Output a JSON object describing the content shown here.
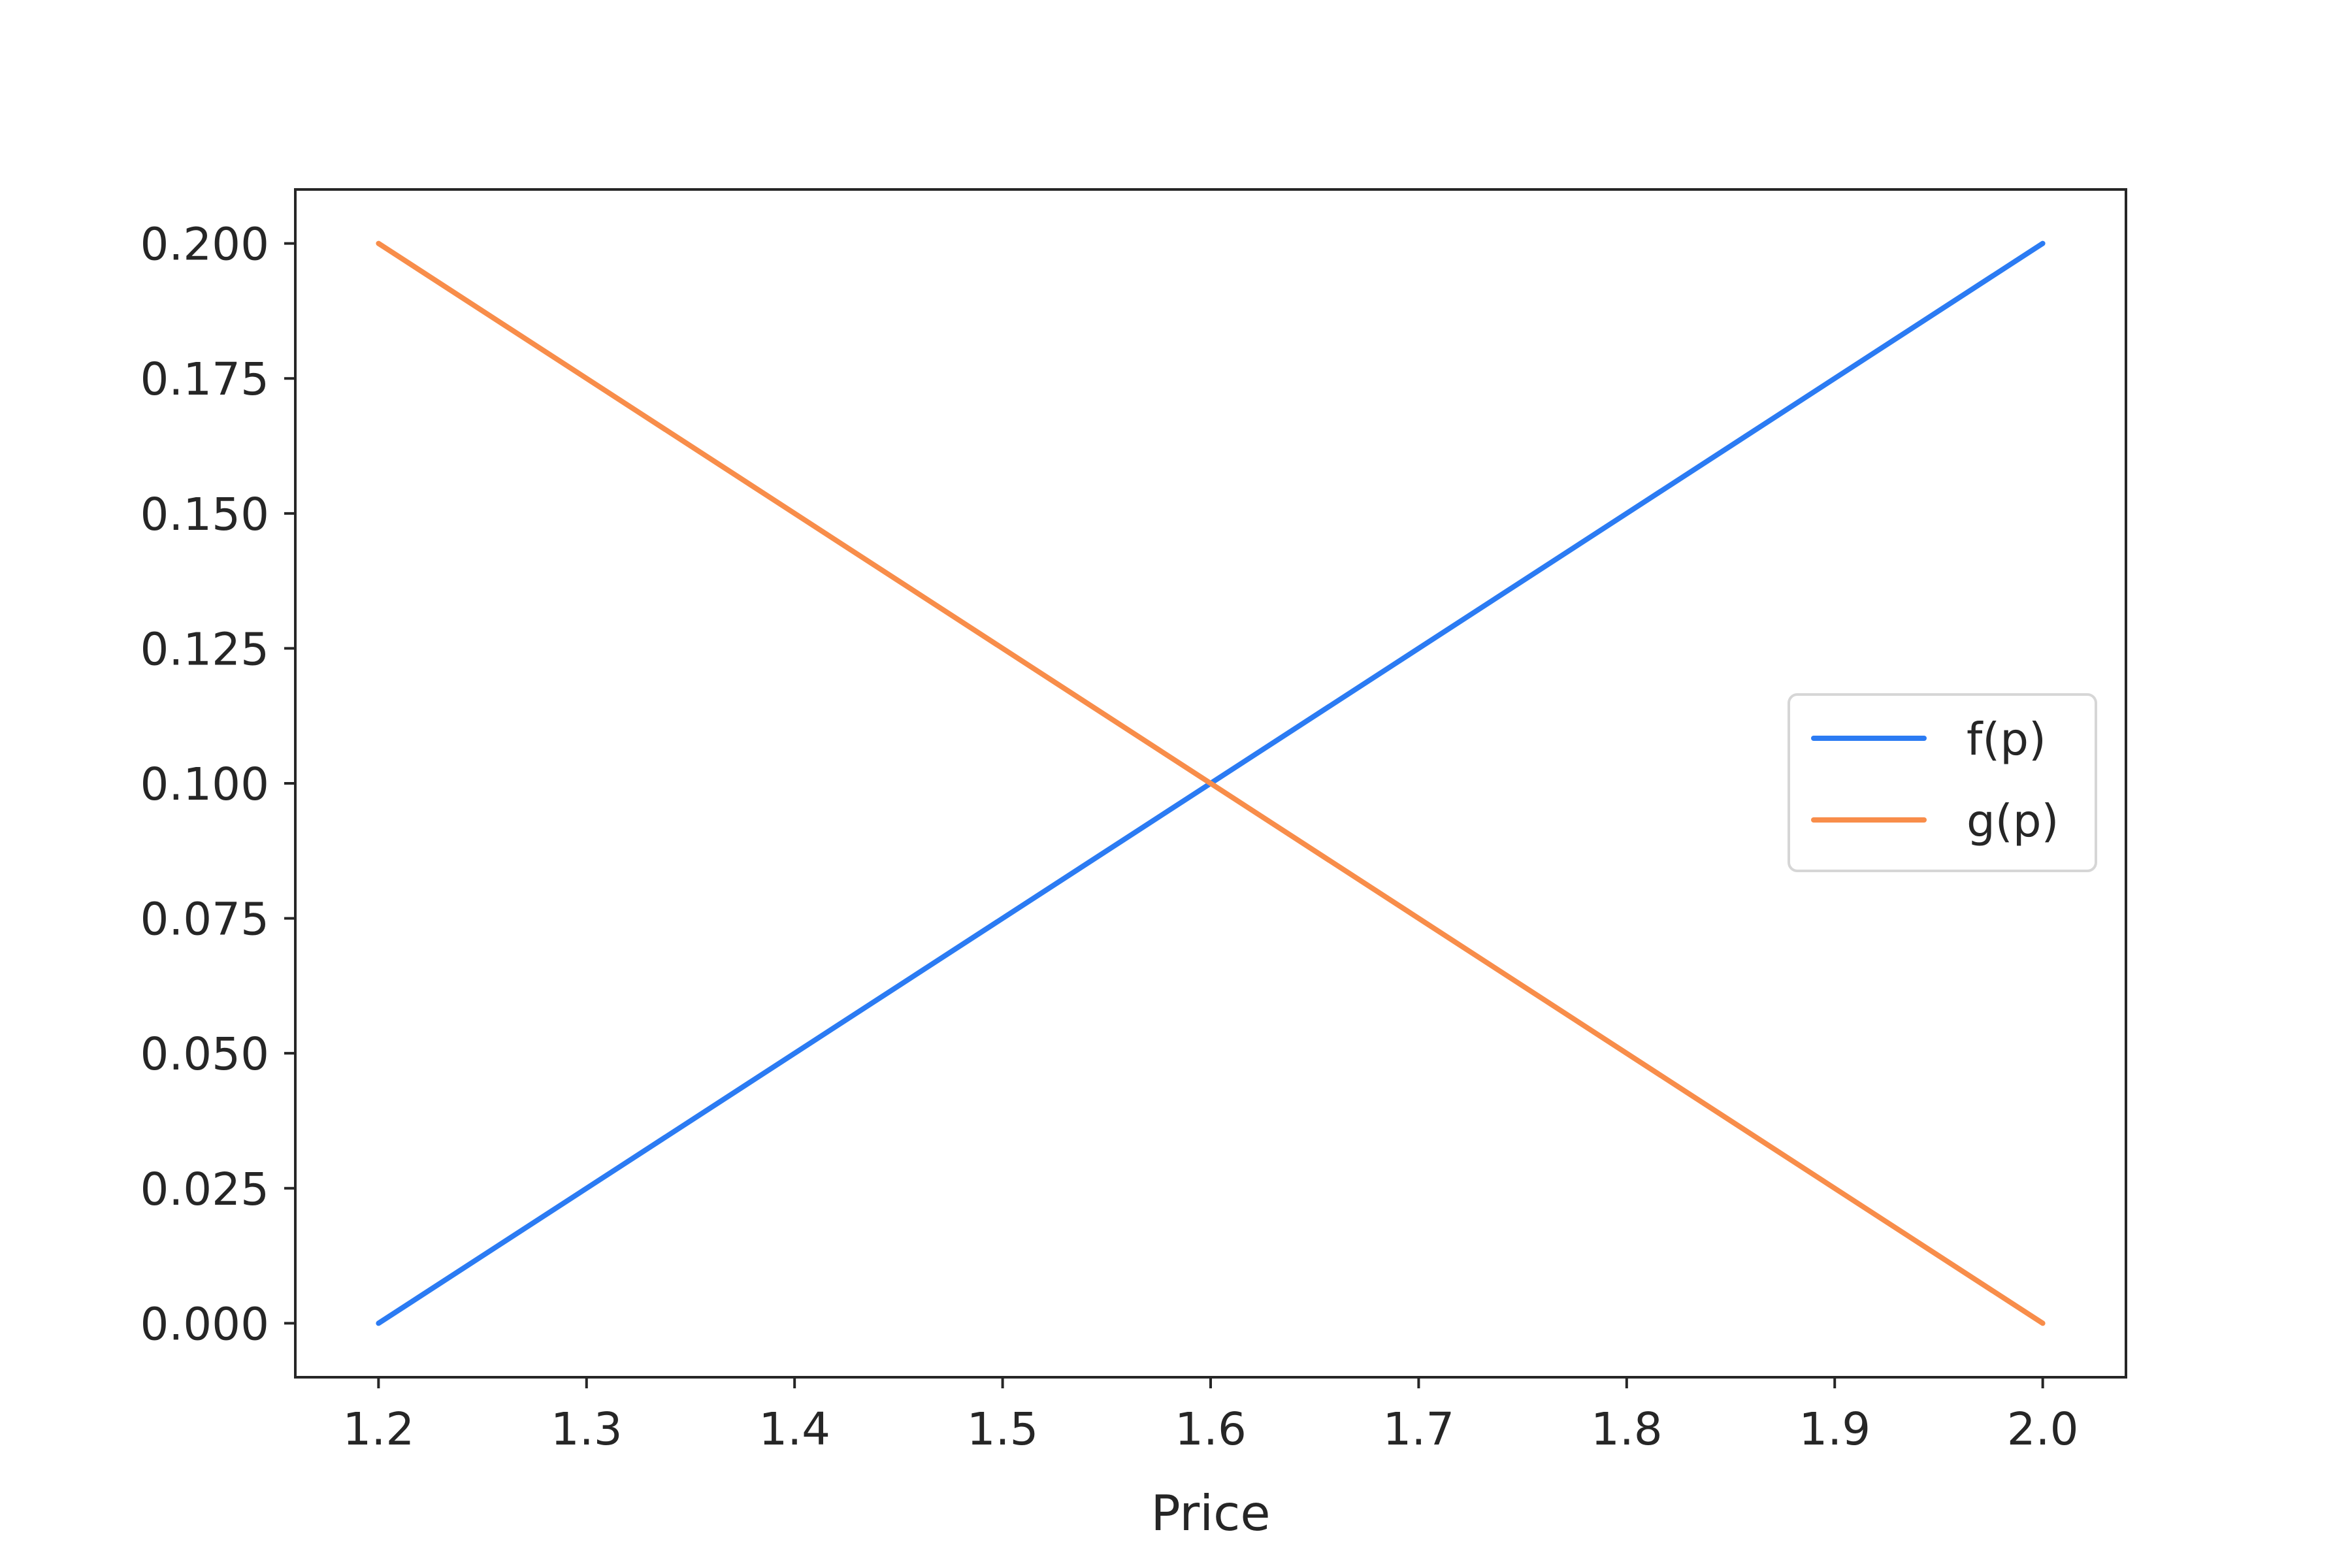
{
  "chart_data": {
    "type": "line",
    "title": "",
    "xlabel": "Price",
    "ylabel": "",
    "xlim": [
      1.16,
      2.04
    ],
    "ylim": [
      -0.01,
      0.21
    ],
    "xticks": [
      1.2,
      1.3,
      1.4,
      1.5,
      1.6,
      1.7,
      1.8,
      1.9,
      2.0
    ],
    "xtick_labels": [
      "1.2",
      "1.3",
      "1.4",
      "1.5",
      "1.6",
      "1.7",
      "1.8",
      "1.9",
      "2.0"
    ],
    "yticks": [
      0.0,
      0.025,
      0.05,
      0.075,
      0.1,
      0.125,
      0.15,
      0.175,
      0.2
    ],
    "ytick_labels": [
      "0.000",
      "0.025",
      "0.050",
      "0.075",
      "0.100",
      "0.125",
      "0.150",
      "0.175",
      "0.200"
    ],
    "grid": false,
    "legend": {
      "placement": "center-right"
    },
    "series": [
      {
        "name": "f(p)",
        "color": "#2b7bf3",
        "x": [
          1.2,
          2.0
        ],
        "y": [
          0.0,
          0.2
        ]
      },
      {
        "name": "g(p)",
        "color": "#f88d4a",
        "x": [
          1.2,
          2.0
        ],
        "y": [
          0.2,
          0.0
        ]
      }
    ]
  }
}
